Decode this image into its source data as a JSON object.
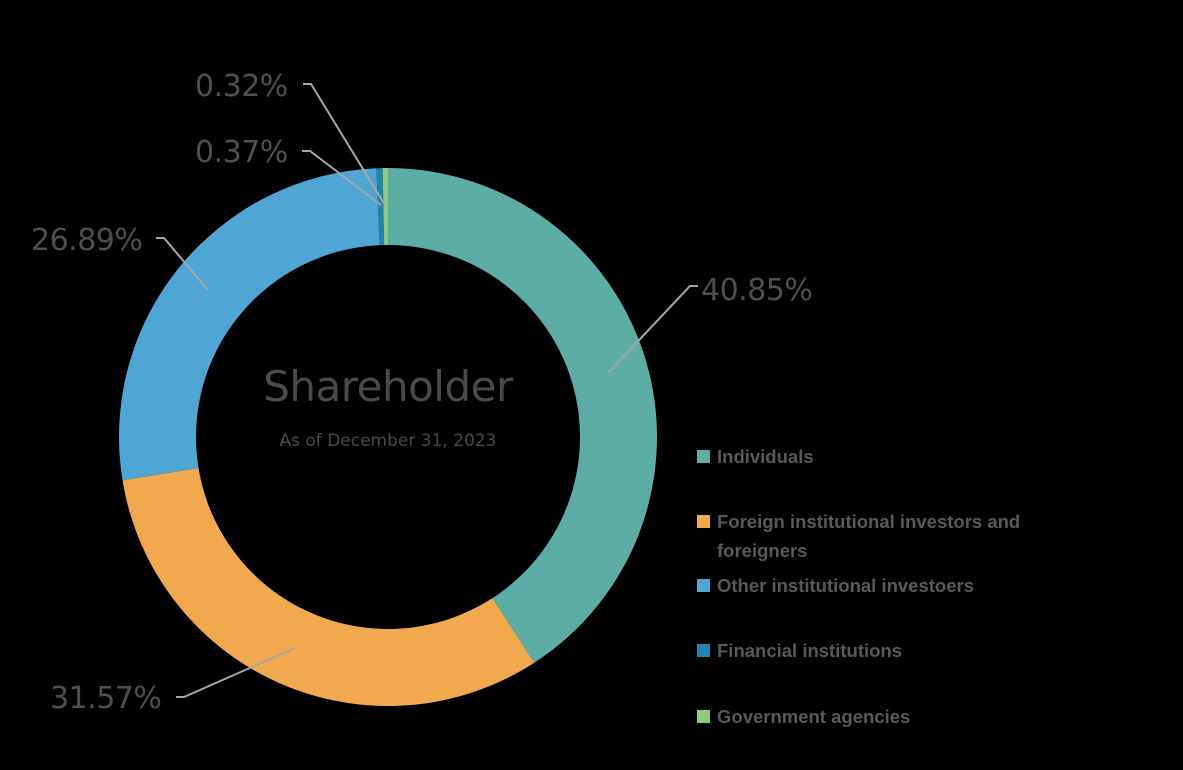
{
  "chart_data": {
    "type": "pie",
    "variant": "donut",
    "title": "Shareholder",
    "subtitle": "As of December 31, 2023",
    "legend_position": "right",
    "categories": [
      "Individuals",
      "Foreign institutional investors and foreigners",
      "Other institutional investoers",
      "Financial institutions",
      "Government agencies"
    ],
    "values": [
      40.85,
      31.57,
      26.89,
      0.37,
      0.32
    ],
    "labels": [
      "40.85%",
      "31.57%",
      "26.89%",
      "0.37%",
      "0.32%"
    ],
    "colors": [
      "#5bab a5",
      "#f2a94e",
      "#4fa6d5",
      "#2282b0",
      "#8ccb7e"
    ],
    "unit": "%"
  },
  "center": {
    "title": "Shareholder",
    "subtitle": "As of December 31, 2023"
  },
  "labels": {
    "individuals": "40.85%",
    "foreign": "31.57%",
    "other_institutional": "26.89%",
    "financial": "0.37%",
    "government": "0.32%"
  },
  "legend": {
    "items": [
      {
        "label": "Individuals",
        "color": "#5bada6"
      },
      {
        "label": "Foreign institutional investors and foreigners",
        "color": "#f2a94e"
      },
      {
        "label": "Other institutional investoers",
        "color": "#4fa6d5"
      },
      {
        "label": "Financial institutions",
        "color": "#2282b0"
      },
      {
        "label": "Government agencies",
        "color": "#8ccb7e"
      }
    ]
  }
}
